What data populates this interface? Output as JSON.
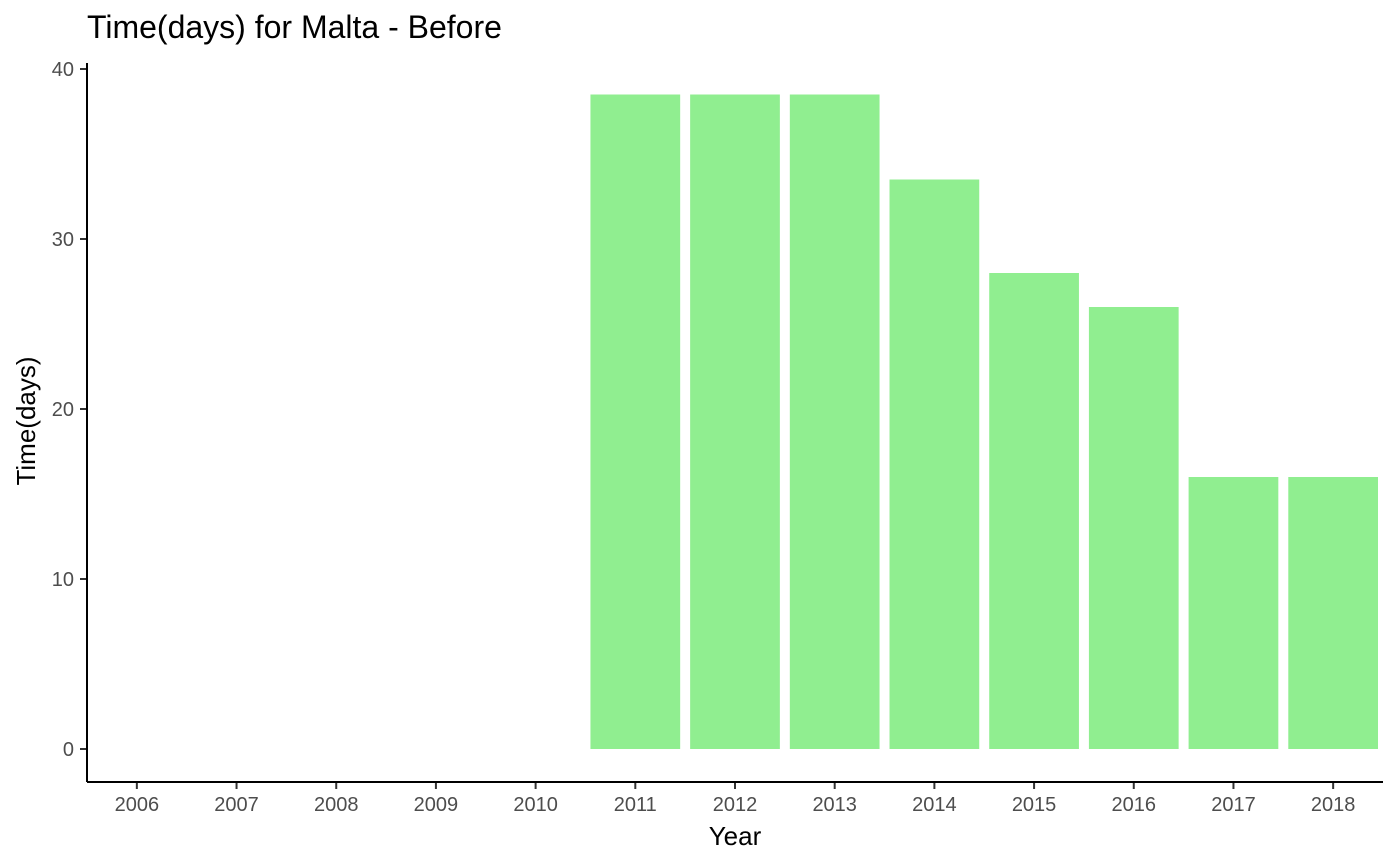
{
  "chart_data": {
    "type": "bar",
    "title": "Time(days) for Malta - Before",
    "xlabel": "Year",
    "ylabel": "Time(days)",
    "categories": [
      "2006",
      "2007",
      "2008",
      "2009",
      "2010",
      "2011",
      "2012",
      "2013",
      "2014",
      "2015",
      "2016",
      "2017",
      "2018"
    ],
    "values": [
      null,
      null,
      null,
      null,
      null,
      38.5,
      38.5,
      38.5,
      33.5,
      28,
      26,
      16,
      16
    ],
    "ylim": [
      0,
      40
    ],
    "yticks": [
      0,
      10,
      20,
      30,
      40
    ],
    "grid": false,
    "legend": "none",
    "colors": {
      "bar": "#90ee90",
      "axis": "#000000",
      "tick_label": "#4d4d4d"
    }
  }
}
